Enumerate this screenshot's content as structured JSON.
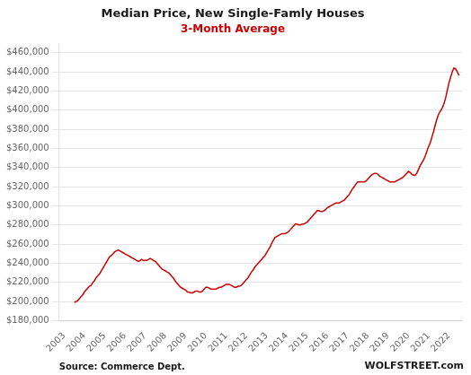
{
  "chart_data": {
    "type": "line",
    "title": "Median Price, New Single-Famly Houses",
    "subtitle": "3-Month Average",
    "annotations": [
      "Source: Commerce Dept.",
      "WOLFSTREET.com"
    ],
    "color": "#cc0000",
    "grid": "y",
    "xlim": [
      2002.75,
      2022.65
    ],
    "xticks": [
      2003,
      2004,
      2005,
      2006,
      2007,
      2008,
      2009,
      2010,
      2011,
      2012,
      2013,
      2014,
      2015,
      2016,
      2017,
      2018,
      2019,
      2020,
      2021,
      2022
    ],
    "ylim": [
      180000,
      470000
    ],
    "yticks": [
      {
        "value": 180000,
        "label": "$180,000"
      },
      {
        "value": 200000,
        "label": "$200,000"
      },
      {
        "value": 220000,
        "label": "$220,000"
      },
      {
        "value": 240000,
        "label": "$240,000"
      },
      {
        "value": 260000,
        "label": "$260,000"
      },
      {
        "value": 280000,
        "label": "$280,000"
      },
      {
        "value": 300000,
        "label": "$300,000"
      },
      {
        "value": 320000,
        "label": "$320,000"
      },
      {
        "value": 340000,
        "label": "$340,000"
      },
      {
        "value": 360000,
        "label": "$360,000"
      },
      {
        "value": 380000,
        "label": "$380,000"
      },
      {
        "value": 400000,
        "label": "$400,000"
      },
      {
        "value": 420000,
        "label": "$420,000"
      },
      {
        "value": 440000,
        "label": "$440,000"
      },
      {
        "value": 460000,
        "label": "$460,000"
      }
    ],
    "x": [
      2003.5,
      2003.583,
      2003.667,
      2003.75,
      2003.833,
      2003.917,
      2004.0,
      2004.083,
      2004.167,
      2004.25,
      2004.333,
      2004.417,
      2004.5,
      2004.583,
      2004.667,
      2004.75,
      2004.833,
      2004.917,
      2005.0,
      2005.083,
      2005.167,
      2005.25,
      2005.333,
      2005.417,
      2005.5,
      2005.583,
      2005.667,
      2005.75,
      2005.833,
      2005.917,
      2006.0,
      2006.083,
      2006.167,
      2006.25,
      2006.333,
      2006.417,
      2006.5,
      2006.583,
      2006.667,
      2006.75,
      2006.833,
      2006.917,
      2007.0,
      2007.083,
      2007.167,
      2007.25,
      2007.333,
      2007.417,
      2007.5,
      2007.583,
      2007.667,
      2007.75,
      2007.833,
      2007.917,
      2008.0,
      2008.083,
      2008.167,
      2008.25,
      2008.333,
      2008.417,
      2008.5,
      2008.583,
      2008.667,
      2008.75,
      2008.833,
      2008.917,
      2009.0,
      2009.083,
      2009.167,
      2009.25,
      2009.333,
      2009.417,
      2009.5,
      2009.583,
      2009.667,
      2009.75,
      2009.833,
      2009.917,
      2010.0,
      2010.083,
      2010.167,
      2010.25,
      2010.333,
      2010.417,
      2010.5,
      2010.583,
      2010.667,
      2010.75,
      2010.833,
      2010.917,
      2011.0,
      2011.083,
      2011.167,
      2011.25,
      2011.333,
      2011.417,
      2011.5,
      2011.583,
      2011.667,
      2011.75,
      2011.833,
      2011.917,
      2012.0,
      2012.083,
      2012.167,
      2012.25,
      2012.333,
      2012.417,
      2012.5,
      2012.583,
      2012.667,
      2012.75,
      2012.833,
      2012.917,
      2013.0,
      2013.083,
      2013.167,
      2013.25,
      2013.333,
      2013.417,
      2013.5,
      2013.583,
      2013.667,
      2013.75,
      2013.833,
      2013.917,
      2014.0,
      2014.083,
      2014.167,
      2014.25,
      2014.333,
      2014.417,
      2014.5,
      2014.583,
      2014.667,
      2014.75,
      2014.833,
      2014.917,
      2015.0,
      2015.083,
      2015.167,
      2015.25,
      2015.333,
      2015.417,
      2015.5,
      2015.583,
      2015.667,
      2015.75,
      2015.833,
      2015.917,
      2016.0,
      2016.083,
      2016.167,
      2016.25,
      2016.333,
      2016.417,
      2016.5,
      2016.583,
      2016.667,
      2016.75,
      2016.833,
      2016.917,
      2017.0,
      2017.083,
      2017.167,
      2017.25,
      2017.333,
      2017.417,
      2017.5,
      2017.583,
      2017.667,
      2017.75,
      2017.833,
      2017.917,
      2018.0,
      2018.083,
      2018.167,
      2018.25,
      2018.333,
      2018.417,
      2018.5,
      2018.583,
      2018.667,
      2018.75,
      2018.833,
      2018.917,
      2019.0,
      2019.083,
      2019.167,
      2019.25,
      2019.333,
      2019.417,
      2019.5,
      2019.583,
      2019.667,
      2019.75,
      2019.833,
      2019.917,
      2020.0,
      2020.083,
      2020.167,
      2020.25,
      2020.333,
      2020.417,
      2020.5,
      2020.583,
      2020.667,
      2020.75,
      2020.833,
      2020.917,
      2021.0,
      2021.083,
      2021.167,
      2021.25,
      2021.333,
      2021.417,
      2021.5,
      2021.583,
      2021.667,
      2021.75,
      2021.833,
      2021.917,
      2022.0,
      2022.083,
      2022.167,
      2022.25,
      2022.333,
      2022.417,
      2022.5
    ],
    "values": [
      199000,
      200000,
      201000,
      203000,
      205000,
      207000,
      210000,
      212000,
      214000,
      216000,
      217000,
      220000,
      222000,
      225000,
      227000,
      229000,
      232000,
      235000,
      238000,
      241000,
      244000,
      247000,
      248000,
      250000,
      252000,
      253000,
      254000,
      253000,
      252000,
      251000,
      250000,
      249000,
      248000,
      247000,
      246000,
      245000,
      244000,
      243000,
      242000,
      243000,
      244000,
      243000,
      243000,
      243000,
      244000,
      245000,
      244000,
      243000,
      242000,
      240000,
      238000,
      236000,
      234000,
      233000,
      232000,
      231000,
      230000,
      228000,
      226000,
      224000,
      221000,
      219000,
      217000,
      215000,
      214000,
      213000,
      212000,
      210000,
      210000,
      209000,
      209000,
      210000,
      211000,
      211000,
      210000,
      210000,
      211000,
      213000,
      215000,
      215000,
      214000,
      213000,
      213000,
      213000,
      213000,
      214000,
      215000,
      215000,
      216000,
      217000,
      218000,
      218000,
      218000,
      217000,
      216000,
      215000,
      215000,
      216000,
      216000,
      217000,
      219000,
      221000,
      223000,
      225000,
      228000,
      231000,
      233000,
      236000,
      238000,
      240000,
      242000,
      244000,
      246000,
      248000,
      251000,
      254000,
      257000,
      261000,
      264000,
      267000,
      268000,
      269000,
      270000,
      271000,
      271000,
      271000,
      272000,
      273000,
      275000,
      277000,
      279000,
      281000,
      281000,
      280000,
      280000,
      281000,
      281000,
      282000,
      283000,
      285000,
      287000,
      289000,
      291000,
      293000,
      295000,
      295000,
      294000,
      294000,
      295000,
      296000,
      298000,
      299000,
      300000,
      301000,
      302000,
      303000,
      303000,
      303000,
      304000,
      305000,
      306000,
      308000,
      310000,
      312000,
      315000,
      318000,
      320000,
      323000,
      325000,
      325000,
      325000,
      325000,
      325000,
      326000,
      328000,
      330000,
      332000,
      333000,
      334000,
      334000,
      333000,
      331000,
      330000,
      329000,
      328000,
      327000,
      326000,
      325000,
      325000,
      325000,
      325000,
      326000,
      327000,
      328000,
      329000,
      330000,
      332000,
      334000,
      336000,
      335000,
      333000,
      332000,
      332000,
      334000,
      338000,
      342000,
      345000,
      348000,
      352000,
      357000,
      362000,
      366000,
      372000,
      378000,
      385000,
      391000,
      396000,
      399000,
      402000,
      406000,
      412000,
      420000,
      428000,
      434000,
      440000,
      444000,
      443000,
      440000,
      436000
    ]
  }
}
